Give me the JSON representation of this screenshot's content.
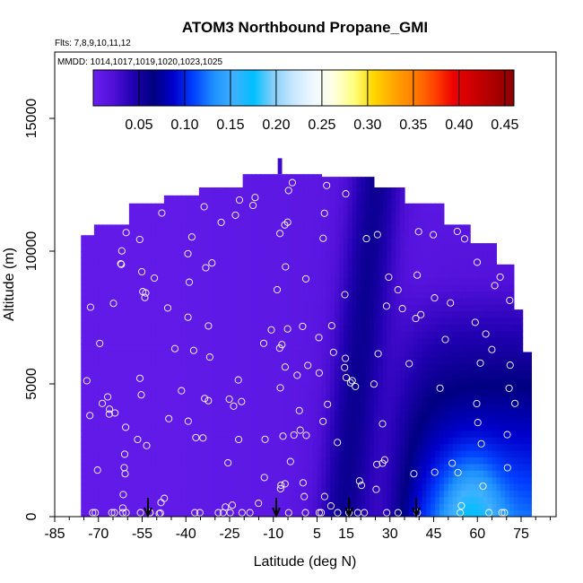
{
  "chart_data": {
    "type": "heatmap",
    "title": "ATOM3 Northbound Propane_GMI",
    "flights_text": "Flts: 7,8,9,10,11,12",
    "dates_text": "MMDD: 1014,1017,1019,1020,1023,1025",
    "xlabel": "Latitude (deg N)",
    "ylabel": "Altitude (m)",
    "xlim": [
      -85,
      87
    ],
    "ylim": [
      0,
      17500
    ],
    "x_ticks": [
      -85,
      -70,
      -55,
      -40,
      -25,
      -10,
      5,
      15,
      30,
      45,
      60,
      75
    ],
    "x_tick_labels": [
      "-85",
      "-70",
      "-55",
      "-40",
      "-25",
      "-10",
      "5",
      "15",
      "30",
      "45",
      "60",
      "75"
    ],
    "y_ticks": [
      0,
      5000,
      10000,
      15000
    ],
    "y_tick_labels": [
      "0",
      "5000",
      "10000",
      "15000"
    ],
    "colorbar": {
      "min": 0.0,
      "max": 0.46,
      "ticks": [
        0.05,
        0.1,
        0.15,
        0.2,
        0.25,
        0.3,
        0.35,
        0.4,
        0.45
      ],
      "tick_labels": [
        "0.05",
        "0.10",
        "0.15",
        "0.20",
        "0.25",
        "0.30",
        "0.35",
        "0.40",
        "0.45"
      ],
      "colors": [
        "#6a20f0",
        "#5010d8",
        "#2000b0",
        "#000080",
        "#0000cd",
        "#0040ff",
        "#1e90ff",
        "#40b0ff",
        "#00bfff",
        "#87cefa",
        "#c8e8ff",
        "#f0f8ff",
        "#ffffe0",
        "#ffff80",
        "#ffd700",
        "#ffa500",
        "#ff7f00",
        "#ff4500",
        "#ee0000",
        "#cc0000",
        "#aa0000",
        "#8b0000"
      ]
    },
    "surface_arrows_lat": [
      -53,
      -9,
      16,
      39
    ]
  }
}
